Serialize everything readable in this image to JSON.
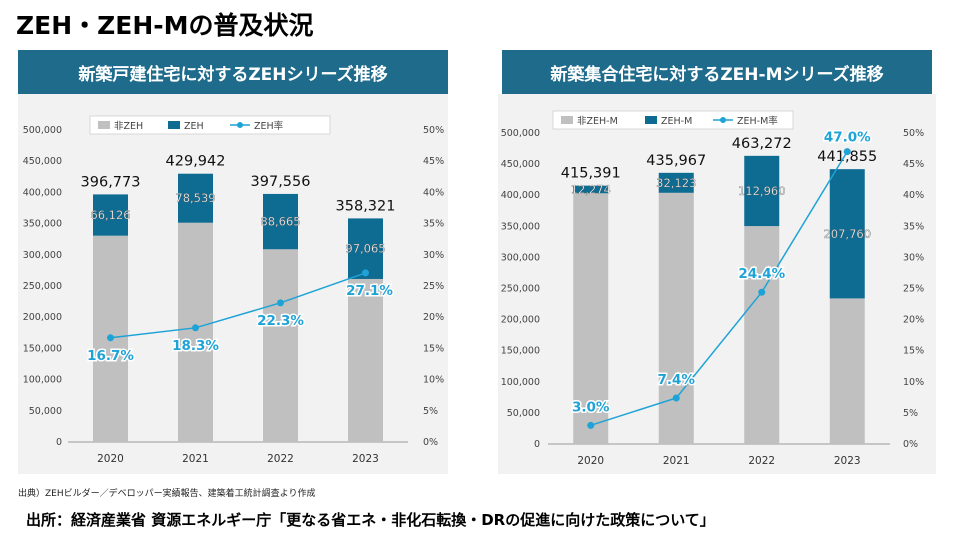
{
  "page": {
    "title": "ZEH・ZEH-Mの普及状況",
    "source_note": "出典）ZEHビルダー／デベロッパー実績報告、建築着工統計調査より作成",
    "footer": "出所：経済産業省 資源エネルギー庁「更なる省エネ・非化石転換・DRの促進に向けた政策について」"
  },
  "colors": {
    "header_bg": "#1f6b8c",
    "panel_bg": "#f2f2f2",
    "non_zeh": "#c0c0c0",
    "zeh": "#0e6b91",
    "rate_line": "#1ea3d6",
    "rate_label": "#1ea3d6"
  },
  "chart_data": [
    {
      "type": "bar",
      "title": "新築戸建住宅に対するZEHシリーズ推移",
      "stacked": true,
      "categories": [
        "2020",
        "2021",
        "2022",
        "2023"
      ],
      "series": [
        {
          "name": "非ZEH",
          "values": [
            330647,
            351403,
            308891,
            261256
          ]
        },
        {
          "name": "ZEH",
          "values": [
            66126,
            78539,
            88665,
            97065
          ]
        }
      ],
      "totals": [
        396773,
        429942,
        397556,
        358321
      ],
      "total_labels": [
        "396,773",
        "429,942",
        "397,556",
        "358,321"
      ],
      "zeh_labels": [
        "66,126",
        "78,539",
        "88,665",
        "97,065"
      ],
      "rate_series": {
        "name": "ZEH率",
        "values": [
          16.7,
          18.3,
          22.3,
          27.1
        ],
        "labels": [
          "16.7%",
          "18.3%",
          "22.3%",
          "27.1%"
        ]
      },
      "y_left": {
        "min": 0,
        "max": 500000,
        "ticks": [
          "0",
          "50,000",
          "100,000",
          "150,000",
          "200,000",
          "250,000",
          "300,000",
          "350,000",
          "400,000",
          "450,000",
          "500,000"
        ]
      },
      "y_right": {
        "min": 0,
        "max": 50,
        "ticks": [
          "0%",
          "5%",
          "10%",
          "15%",
          "20%",
          "25%",
          "30%",
          "35%",
          "40%",
          "45%",
          "50%"
        ]
      },
      "legend": [
        "非ZEH",
        "ZEH",
        "ZEH率"
      ],
      "legend_position": "top-center"
    },
    {
      "type": "bar",
      "title": "新築集合住宅に対するZEH-Mシリーズ推移",
      "stacked": true,
      "categories": [
        "2020",
        "2021",
        "2022",
        "2023"
      ],
      "series": [
        {
          "name": "非ZEH-M",
          "values": [
            403117,
            403844,
            350312,
            234095
          ]
        },
        {
          "name": "ZEH-M",
          "values": [
            12274,
            32123,
            112960,
            207760
          ]
        }
      ],
      "totals": [
        415391,
        435967,
        463272,
        441855
      ],
      "total_labels": [
        "415,391",
        "435,967",
        "463,272",
        "441,855"
      ],
      "zeh_labels": [
        "12,274",
        "32,123",
        "112,960",
        "207,760"
      ],
      "rate_series": {
        "name": "ZEH-M率",
        "values": [
          3.0,
          7.4,
          24.4,
          47.0
        ],
        "labels": [
          "3.0%",
          "7.4%",
          "24.4%",
          "47.0%"
        ]
      },
      "y_left": {
        "min": 0,
        "max": 500000,
        "ticks": [
          "0",
          "50,000",
          "100,000",
          "150,000",
          "200,000",
          "250,000",
          "300,000",
          "350,000",
          "400,000",
          "450,000",
          "500,000"
        ]
      },
      "y_right": {
        "min": 0,
        "max": 50,
        "ticks": [
          "0%",
          "5%",
          "10%",
          "15%",
          "20%",
          "25%",
          "30%",
          "35%",
          "40%",
          "45%",
          "50%"
        ]
      },
      "legend": [
        "非ZEH-M",
        "ZEH-M",
        "ZEH-M率"
      ],
      "legend_position": "top-center"
    }
  ]
}
